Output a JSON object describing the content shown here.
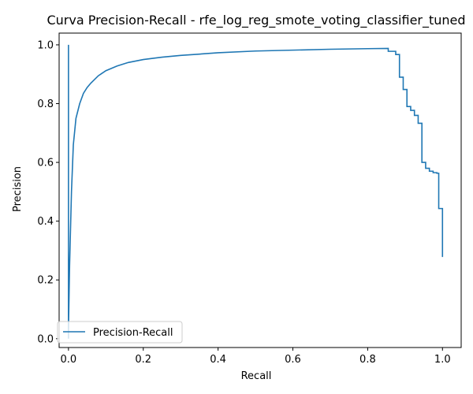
{
  "chart_data": {
    "type": "line",
    "title": "Curva Precision-Recall - rfe_log_reg_smote_voting_classifier_tuned",
    "xlabel": "Recall",
    "ylabel": "Precision",
    "xlim": [
      -0.025,
      1.05
    ],
    "ylim": [
      -0.03,
      1.04
    ],
    "xticks": [
      0.0,
      0.2,
      0.4,
      0.6,
      0.8,
      1.0
    ],
    "xtick_labels": [
      "0.0",
      "0.2",
      "0.4",
      "0.6",
      "0.8",
      "1.0"
    ],
    "yticks": [
      0.0,
      0.2,
      0.4,
      0.6,
      0.8,
      1.0
    ],
    "ytick_labels": [
      "0.0",
      "0.2",
      "0.4",
      "0.6",
      "0.8",
      "1.0"
    ],
    "grid": false,
    "legend_position": "lower-left",
    "series": [
      {
        "name": "Precision-Recall",
        "color": "#1f77b4",
        "x": [
          0.0,
          0.0,
          0.0,
          0.003,
          0.008,
          0.013,
          0.02,
          0.03,
          0.04,
          0.05,
          0.06,
          0.08,
          0.1,
          0.13,
          0.16,
          0.2,
          0.25,
          0.3,
          0.4,
          0.5,
          0.6,
          0.7,
          0.8,
          0.855,
          0.855,
          0.875,
          0.875,
          0.885,
          0.885,
          0.895,
          0.895,
          0.905,
          0.905,
          0.915,
          0.915,
          0.925,
          0.925,
          0.935,
          0.935,
          0.945,
          0.945,
          0.955,
          0.955,
          0.965,
          0.965,
          0.975,
          0.975,
          0.985,
          0.985,
          0.99,
          0.99,
          1.0,
          1.0
        ],
        "y": [
          1.0,
          0.0,
          0.03,
          0.25,
          0.5,
          0.66,
          0.75,
          0.8,
          0.835,
          0.855,
          0.87,
          0.895,
          0.912,
          0.928,
          0.94,
          0.95,
          0.958,
          0.964,
          0.973,
          0.979,
          0.982,
          0.985,
          0.987,
          0.988,
          0.978,
          0.978,
          0.967,
          0.967,
          0.89,
          0.89,
          0.848,
          0.848,
          0.79,
          0.79,
          0.777,
          0.777,
          0.76,
          0.76,
          0.733,
          0.733,
          0.6,
          0.6,
          0.58,
          0.58,
          0.57,
          0.57,
          0.565,
          0.565,
          0.563,
          0.563,
          0.443,
          0.443,
          0.278
        ]
      }
    ]
  }
}
